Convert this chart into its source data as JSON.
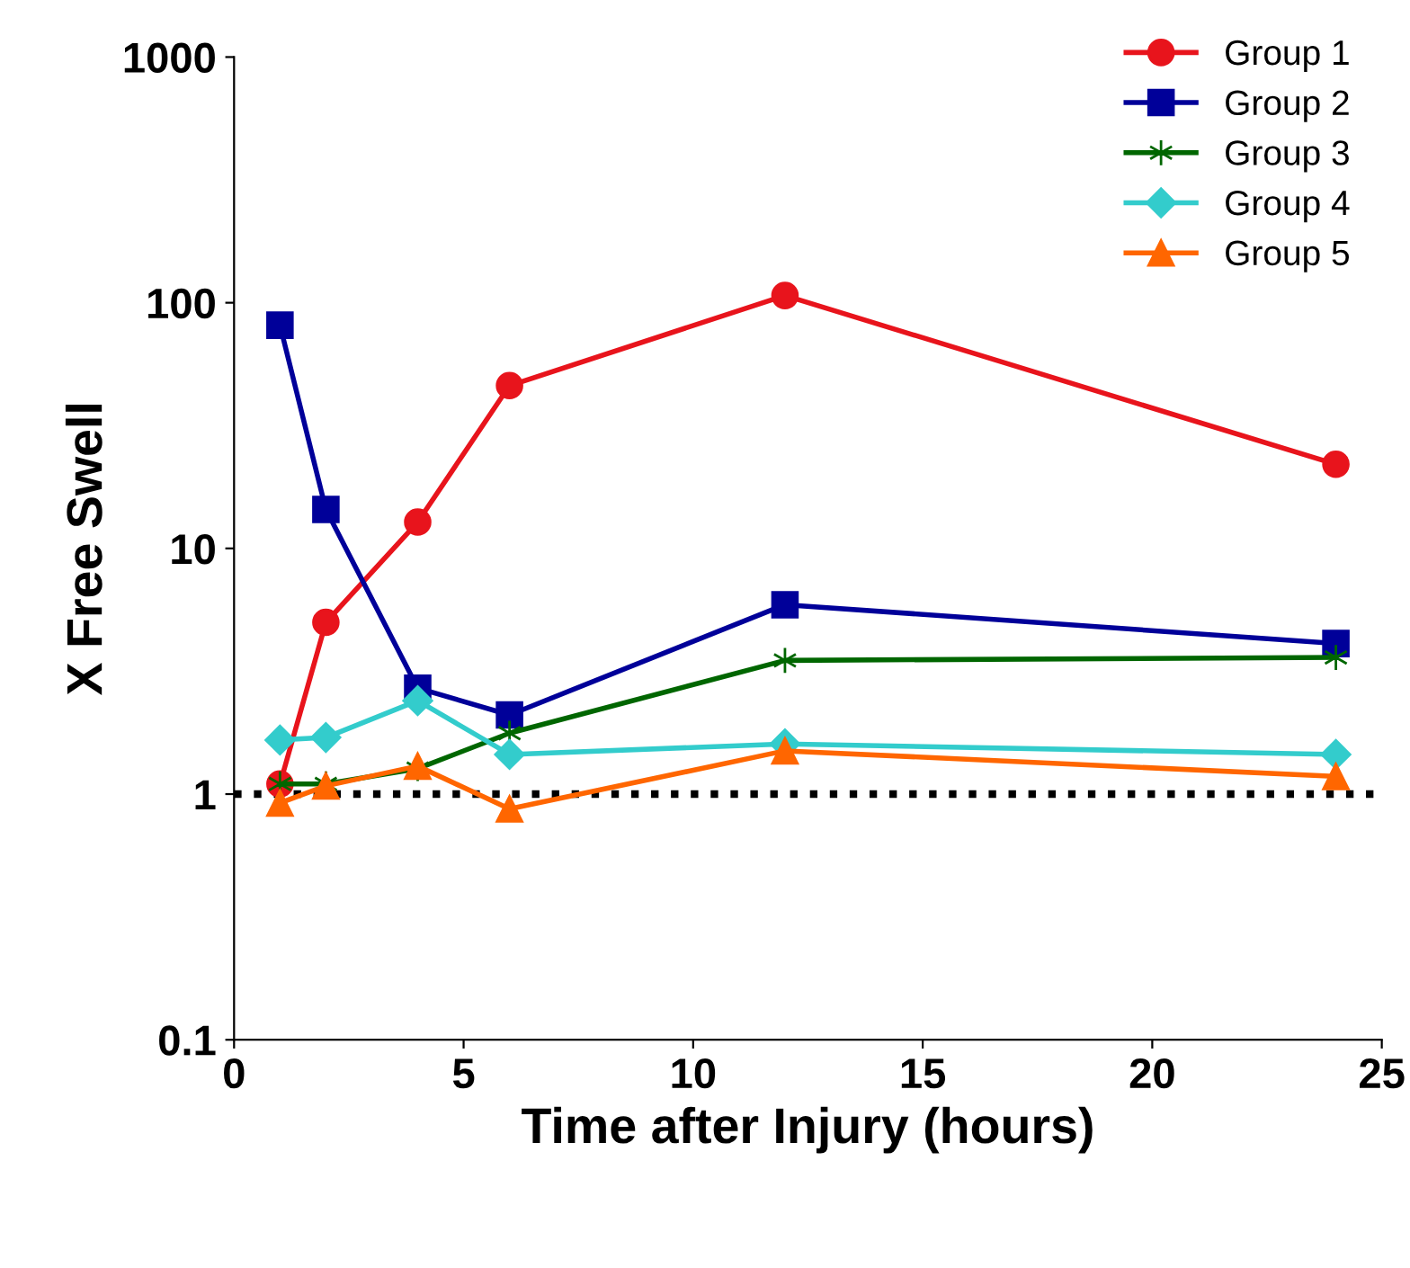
{
  "chart_data": {
    "type": "line",
    "xlabel": "Time after Injury (hours)",
    "ylabel": "X Free Swell",
    "log": "y",
    "xlim": [
      0,
      25
    ],
    "xticks": [
      0,
      5,
      10,
      15,
      20,
      25
    ],
    "ylim": [
      0.1,
      1000
    ],
    "yticks": [
      0.1,
      1,
      10,
      100,
      1000
    ],
    "x": [
      1,
      2,
      4,
      6,
      12,
      24
    ],
    "grid": false,
    "legend": "top right",
    "series": [
      {
        "name": "Group 1",
        "color": "#e8141c",
        "marker": "circle",
        "values": [
          1.1,
          5.0,
          12.8,
          46,
          107,
          22
        ]
      },
      {
        "name": "Group 2",
        "color": "#000099",
        "marker": "square",
        "values": [
          81,
          14.4,
          2.7,
          2.1,
          5.9,
          4.1
        ]
      },
      {
        "name": "Group 3",
        "color": "#006600",
        "marker": "cross",
        "values": [
          1.1,
          1.1,
          1.27,
          1.77,
          3.5,
          3.6
        ]
      },
      {
        "name": "Group 4",
        "color": "#33cccc",
        "marker": "diamond",
        "values": [
          1.66,
          1.7,
          2.4,
          1.45,
          1.6,
          1.45
        ]
      },
      {
        "name": "Group 5",
        "color": "#ff6600",
        "marker": "triangle",
        "values": [
          0.92,
          1.08,
          1.3,
          0.87,
          1.5,
          1.18
        ]
      }
    ],
    "ref_lines": [
      {
        "axis": "y",
        "value": 1,
        "color": "#000000",
        "line_style": "dotted"
      }
    ]
  }
}
